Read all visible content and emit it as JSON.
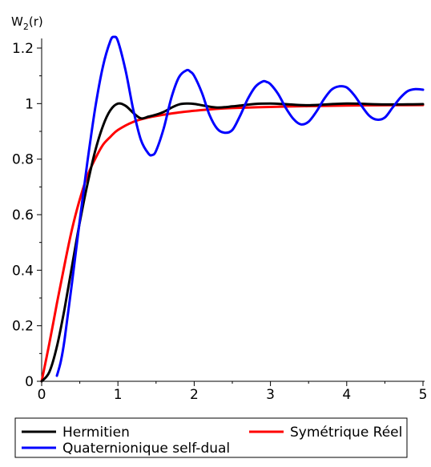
{
  "chart_data": {
    "type": "line",
    "ylabel_main": "W",
    "ylabel_sub": "2",
    "ylabel_rest": "(r)",
    "xlim": [
      0,
      5
    ],
    "ylim": [
      0,
      1.2
    ],
    "x_ticks": [
      0,
      1,
      2,
      3,
      4,
      5
    ],
    "x_tick_labels": [
      "0",
      "1",
      "2",
      "3",
      "4",
      "5"
    ],
    "y_ticks": [
      0,
      0.2,
      0.4,
      0.6,
      0.8,
      1,
      1.2
    ],
    "y_tick_labels": [
      "0",
      "0.2",
      "0.4",
      "0.6",
      "0.8",
      "1",
      "1.2"
    ],
    "grid": false,
    "legend_position": "bottom",
    "series": [
      {
        "name": "Hermitien",
        "color": "#000000",
        "x": [
          0,
          0.1,
          0.2,
          0.3,
          0.4,
          0.5,
          0.6,
          0.7,
          0.8,
          0.9,
          1.0,
          1.1,
          1.2,
          1.3,
          1.4,
          1.5,
          1.6,
          1.7,
          1.8,
          1.9,
          2.0,
          2.1,
          2.2,
          2.3,
          2.4,
          2.5,
          2.6,
          2.8,
          3.0,
          3.2,
          3.5,
          4.0,
          4.5,
          5.0
        ],
        "y": [
          0,
          0.033,
          0.125,
          0.261,
          0.418,
          0.573,
          0.709,
          0.827,
          0.917,
          0.976,
          1.0,
          0.992,
          0.967,
          0.947,
          0.953,
          0.96,
          0.97,
          0.985,
          0.997,
          1.0,
          0.999,
          0.994,
          0.989,
          0.986,
          0.987,
          0.99,
          0.993,
          0.999,
          1.0,
          0.998,
          0.994,
          1.0,
          0.997,
          0.998
        ]
      },
      {
        "name": "Symétrique Réel",
        "color": "#ff0000",
        "x": [
          0,
          0.1,
          0.2,
          0.3,
          0.4,
          0.5,
          0.6,
          0.7,
          0.8,
          0.9,
          1.0,
          1.2,
          1.4,
          1.6,
          1.8,
          2.0,
          2.2,
          2.5,
          3.0,
          3.5,
          4.0,
          4.5,
          5.0
        ],
        "y": [
          0,
          0.135,
          0.28,
          0.42,
          0.55,
          0.655,
          0.74,
          0.8,
          0.85,
          0.88,
          0.905,
          0.934,
          0.95,
          0.96,
          0.968,
          0.974,
          0.979,
          0.984,
          0.988,
          0.991,
          0.993,
          0.994,
          0.995
        ]
      },
      {
        "name": "Quaternionique self-dual",
        "color": "#0000ff",
        "x": [
          0.2,
          0.25,
          0.3,
          0.4,
          0.5,
          0.6,
          0.7,
          0.8,
          0.9,
          0.95,
          1.0,
          1.1,
          1.2,
          1.3,
          1.4,
          1.45,
          1.5,
          1.6,
          1.7,
          1.8,
          1.9,
          1.95,
          2.0,
          2.1,
          2.2,
          2.3,
          2.4,
          2.5,
          2.6,
          2.7,
          2.8,
          2.9,
          2.95,
          3.0,
          3.1,
          3.2,
          3.3,
          3.4,
          3.5,
          3.6,
          3.7,
          3.8,
          3.9,
          4.0,
          4.1,
          4.2,
          4.3,
          4.4,
          4.5,
          4.6,
          4.7,
          4.8,
          4.9,
          5.0
        ],
        "y": [
          0.02,
          0.07,
          0.15,
          0.36,
          0.58,
          0.79,
          0.98,
          1.13,
          1.225,
          1.24,
          1.225,
          1.12,
          0.98,
          0.87,
          0.82,
          0.815,
          0.83,
          0.91,
          1.02,
          1.095,
          1.12,
          1.115,
          1.1,
          1.04,
          0.96,
          0.91,
          0.895,
          0.905,
          0.955,
          1.015,
          1.06,
          1.08,
          1.078,
          1.07,
          1.035,
          0.985,
          0.945,
          0.925,
          0.935,
          0.97,
          1.015,
          1.05,
          1.062,
          1.058,
          1.03,
          0.99,
          0.955,
          0.942,
          0.95,
          0.985,
          1.02,
          1.045,
          1.052,
          1.05
        ]
      }
    ]
  }
}
